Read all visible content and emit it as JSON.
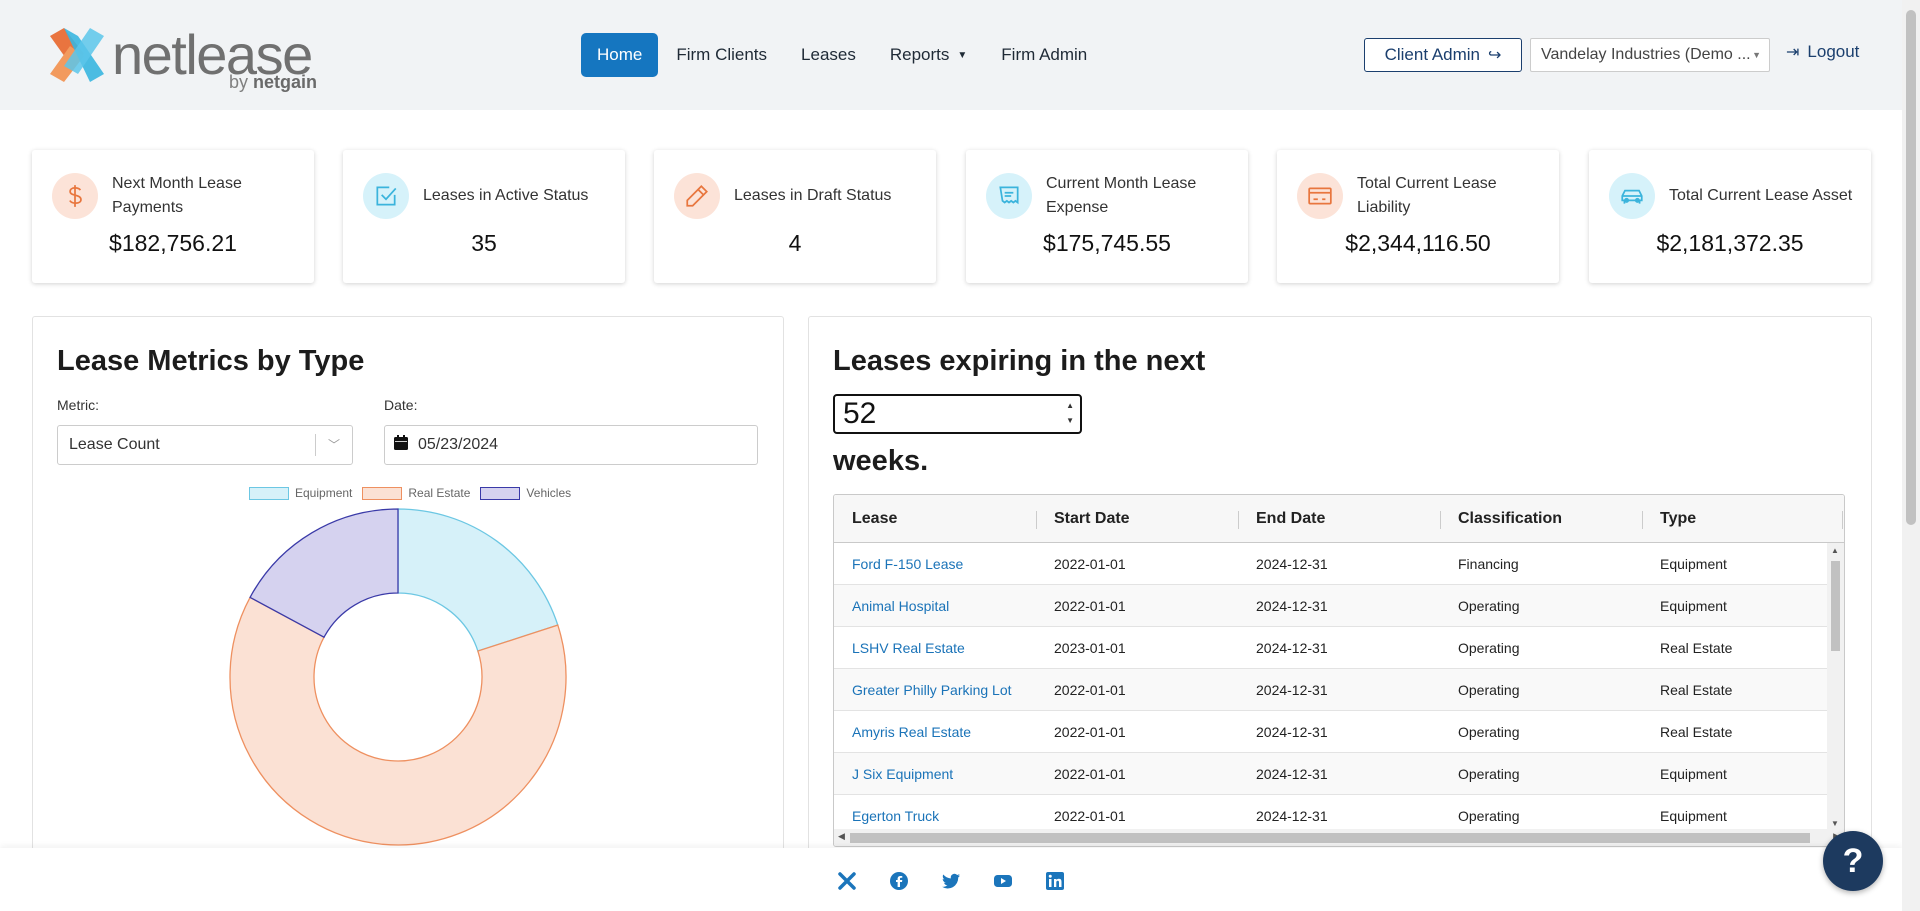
{
  "brand": {
    "name": "netlease",
    "by_prefix": "by",
    "by_name": "netgain"
  },
  "nav": {
    "items": [
      {
        "label": "Home",
        "active": true
      },
      {
        "label": "Firm Clients"
      },
      {
        "label": "Leases"
      },
      {
        "label": "Reports",
        "dropdown": true
      },
      {
        "label": "Firm Admin"
      }
    ]
  },
  "header": {
    "client_admin_label": "Client Admin",
    "client_select_value": "Vandelay Industries (Demo ...",
    "logout_label": "Logout"
  },
  "kpis": [
    {
      "label": "Next Month Lease Payments",
      "value": "$182,756.21",
      "icon": "dollar-icon",
      "color": "orange"
    },
    {
      "label": "Leases in Active Status",
      "value": "35",
      "icon": "checkbox-icon",
      "color": "blue"
    },
    {
      "label": "Leases in Draft Status",
      "value": "4",
      "icon": "pencil-icon",
      "color": "orange"
    },
    {
      "label": "Current Month Lease Expense",
      "value": "$175,745.55",
      "icon": "receipt-icon",
      "color": "blue"
    },
    {
      "label": "Total Current Lease Liability",
      "value": "$2,344,116.50",
      "icon": "card-icon",
      "color": "orange"
    },
    {
      "label": "Total Current Lease Asset",
      "value": "$2,181,372.35",
      "icon": "car-icon",
      "color": "blue"
    }
  ],
  "metrics_panel": {
    "title": "Lease Metrics by Type",
    "metric_label": "Metric:",
    "metric_value": "Lease Count",
    "date_label": "Date:",
    "date_value": "05/23/2024"
  },
  "chart_data": {
    "type": "pie",
    "variant": "doughnut",
    "categories": [
      "Equipment",
      "Real Estate",
      "Vehicles"
    ],
    "values": [
      7,
      22,
      6
    ],
    "colors": {
      "Equipment": "#d6f1f9",
      "Real Estate": "#fbe1d4",
      "Vehicles": "#d5d2ef"
    },
    "border_colors": {
      "Equipment": "#6cc7e3",
      "Real Estate": "#ee9060",
      "Vehicles": "#3a3aa8"
    },
    "legend": "top"
  },
  "expiring_panel": {
    "title_prefix": "Leases expiring in the next",
    "weeks_value": "52",
    "title_suffix": "weeks.",
    "columns": [
      "Lease",
      "Start Date",
      "End Date",
      "Classification",
      "Type"
    ],
    "rows": [
      [
        "Ford F-150 Lease",
        "2022-01-01",
        "2024-12-31",
        "Financing",
        "Equipment"
      ],
      [
        "Animal Hospital",
        "2022-01-01",
        "2024-12-31",
        "Operating",
        "Equipment"
      ],
      [
        "LSHV Real Estate",
        "2023-01-01",
        "2024-12-31",
        "Operating",
        "Real Estate"
      ],
      [
        "Greater Philly Parking Lot",
        "2022-01-01",
        "2024-12-31",
        "Operating",
        "Real Estate"
      ],
      [
        "Amyris Real Estate",
        "2022-01-01",
        "2024-12-31",
        "Operating",
        "Real Estate"
      ],
      [
        "J Six Equipment",
        "2022-01-01",
        "2024-12-31",
        "Operating",
        "Equipment"
      ],
      [
        "Egerton Truck",
        "2022-01-01",
        "2024-12-31",
        "Operating",
        "Equipment"
      ]
    ]
  },
  "footer": {
    "social": [
      "netgain-icon",
      "facebook-icon",
      "twitter-icon",
      "youtube-icon",
      "linkedin-icon"
    ]
  },
  "help": {
    "label": "?"
  }
}
